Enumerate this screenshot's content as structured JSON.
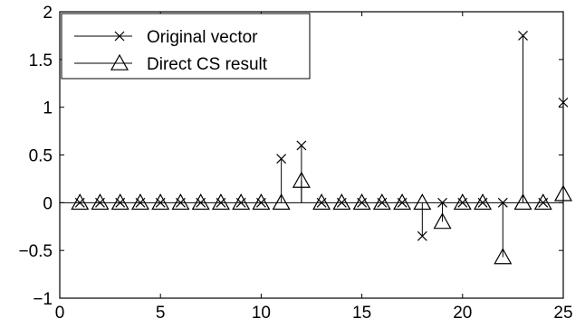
{
  "chart_data": {
    "type": "stem",
    "xlim": [
      0,
      25
    ],
    "ylim": [
      -1,
      2
    ],
    "xticks": [
      0,
      5,
      10,
      15,
      20,
      25
    ],
    "yticks": [
      -1,
      -0.5,
      0,
      0.5,
      1,
      1.5,
      2
    ],
    "xtick_labels": [
      "0",
      "5",
      "10",
      "15",
      "20",
      "25"
    ],
    "ytick_labels": [
      "−1",
      "−0.5",
      "0",
      "0.5",
      "1",
      "1.5",
      "2"
    ],
    "grid": false,
    "baseline": 0,
    "legend_position": "top-left",
    "x": [
      1,
      2,
      3,
      4,
      5,
      6,
      7,
      8,
      9,
      10,
      11,
      12,
      13,
      14,
      15,
      16,
      17,
      18,
      19,
      20,
      21,
      22,
      23,
      24,
      25
    ],
    "series": [
      {
        "name": "Original vector",
        "marker": "x",
        "values": [
          0,
          0,
          0,
          0,
          0,
          0,
          0,
          0,
          0,
          0,
          0.46,
          0.6,
          0,
          0,
          0,
          0,
          0,
          -0.35,
          0,
          0,
          0,
          0,
          1.75,
          0,
          1.05
        ]
      },
      {
        "name": "Direct CS result",
        "marker": "triangle",
        "values": [
          0,
          0,
          0,
          0,
          0,
          0,
          0,
          0,
          0,
          0,
          0,
          0.23,
          0,
          0,
          0,
          0,
          0,
          0,
          -0.2,
          0,
          0,
          -0.57,
          0,
          0,
          0.09
        ]
      }
    ]
  }
}
